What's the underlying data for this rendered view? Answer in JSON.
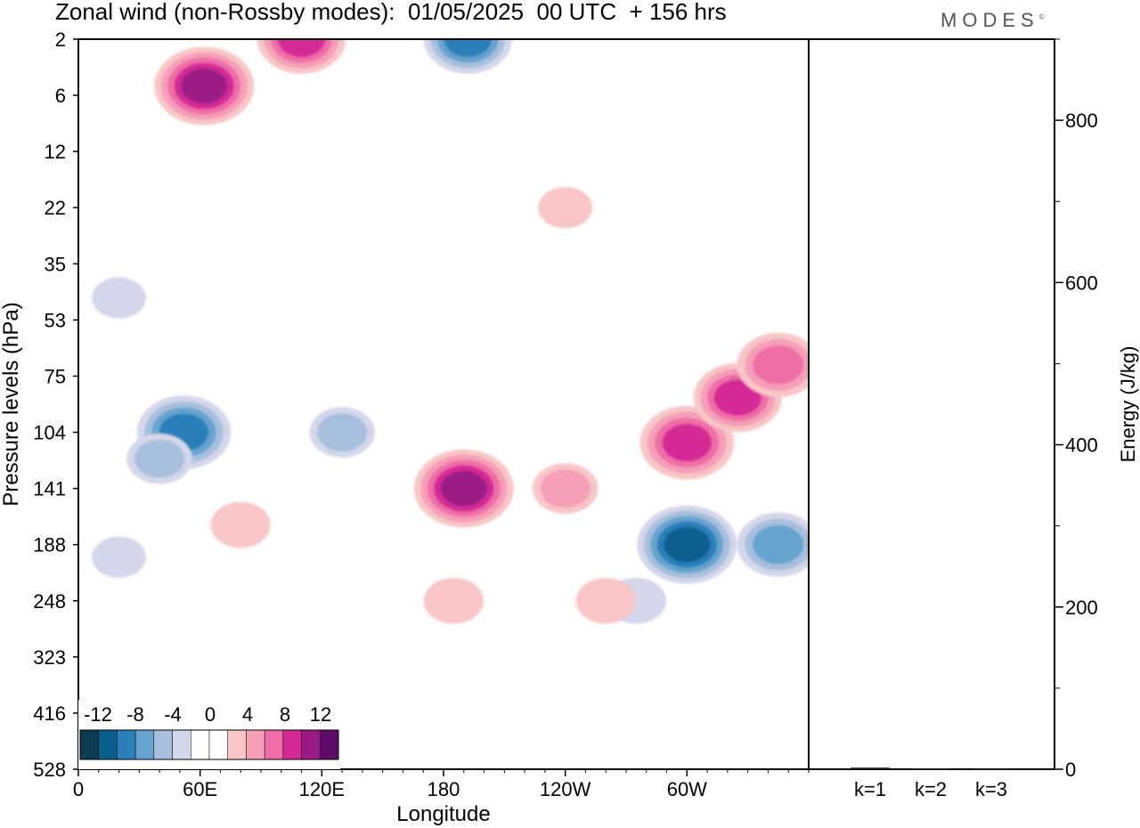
{
  "title": "Zonal wind (non-Rossby modes):  01/05/2025  00 UTC  + 156 hrs",
  "logo": "MODES",
  "logo_mark": "©",
  "colors": {
    "neg": [
      "#0d3b52",
      "#0b5f8f",
      "#2a7fb8",
      "#66a3cf",
      "#a7bfdc",
      "#d4d7ea"
    ],
    "zero": "#ffffff",
    "pos": [
      "#f8c6c6",
      "#f59fb8",
      "#ee6ea6",
      "#d42a95",
      "#9c1a86",
      "#5d0c6a"
    ]
  },
  "chart_data": [
    {
      "type": "heatmap",
      "title": "Zonal wind (non-Rossby modes):  01/05/2025  00 UTC  + 156 hrs",
      "xlabel": "Longitude",
      "ylabel": "Pressure levels (hPa)",
      "x_ticks": [
        "0",
        "60E",
        "120E",
        "180",
        "120W",
        "60W"
      ],
      "y_ticks": [
        "2",
        "6",
        "12",
        "22",
        "35",
        "53",
        "75",
        "104",
        "141",
        "188",
        "248",
        "323",
        "416",
        "528"
      ],
      "colorbar_labels": [
        "-12",
        "-8",
        "-4",
        "0",
        "4",
        "8",
        "12"
      ],
      "colorbar_levels": [
        -14,
        -12,
        -10,
        -8,
        -6,
        -4,
        -2,
        2,
        4,
        6,
        8,
        10,
        12,
        14
      ],
      "blobs": [
        {
          "lon": 52,
          "lev": 104,
          "value": -9
        },
        {
          "lon": 40,
          "lev": 120,
          "value": -4
        },
        {
          "lon": 20,
          "lev": 200,
          "value": -2
        },
        {
          "lon": 300,
          "lev": 188,
          "value": -10
        },
        {
          "lon": 345,
          "lev": 188,
          "value": -7
        },
        {
          "lon": 275,
          "lev": 248,
          "value": -3
        },
        {
          "lon": 192,
          "lev": 2,
          "value": -8
        },
        {
          "lon": 130,
          "lev": 104,
          "value": -4
        },
        {
          "lon": 190,
          "lev": 141,
          "value": 10
        },
        {
          "lon": 185,
          "lev": 248,
          "value": 3
        },
        {
          "lon": 300,
          "lev": 110,
          "value": 9
        },
        {
          "lon": 325,
          "lev": 85,
          "value": 8
        },
        {
          "lon": 345,
          "lev": 70,
          "value": 7
        },
        {
          "lon": 240,
          "lev": 141,
          "value": 4
        },
        {
          "lon": 260,
          "lev": 248,
          "value": 3
        },
        {
          "lon": 62,
          "lev": 5,
          "value": 10
        },
        {
          "lon": 110,
          "lev": 2,
          "value": 8
        },
        {
          "lon": 80,
          "lev": 170,
          "value": 3
        },
        {
          "lon": 240,
          "lev": 22,
          "value": 2
        },
        {
          "lon": 20,
          "lev": 45,
          "value": -2
        }
      ]
    },
    {
      "type": "bar",
      "categories": [
        "k=1",
        "k=2",
        "k=3"
      ],
      "values": [
        2,
        1,
        0.5
      ],
      "ylabel": "Energy (J/kg)",
      "ylim": [
        0,
        900
      ],
      "y_ticks": [
        0,
        200,
        400,
        600,
        800
      ]
    }
  ]
}
